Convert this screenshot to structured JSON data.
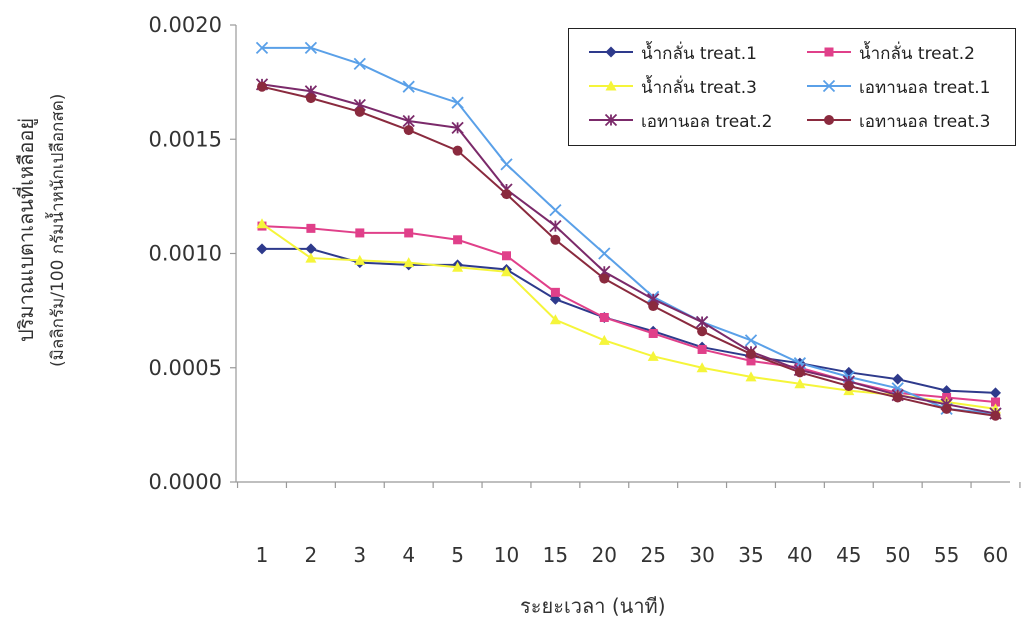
{
  "chart_data": {
    "type": "line",
    "ylabel_line1": "ปริมาณเบตาเลนที่เหลืออยู่",
    "ylabel_line2": "(มิลลิกรัม/100 กรัมน้ำหนักเปลือกสด)",
    "xlabel": "ระยะเวลา (นาที)",
    "categories": [
      "1",
      "2",
      "3",
      "4",
      "5",
      "10",
      "15",
      "20",
      "25",
      "30",
      "35",
      "40",
      "45",
      "50",
      "55",
      "60"
    ],
    "ylim": [
      0,
      0.002
    ],
    "yticks": [
      "0.0000",
      "0.0005",
      "0.0010",
      "0.0015",
      "0.0020"
    ],
    "legend_position": "top-right",
    "series": [
      {
        "name": "น้ำกลั่น treat.1",
        "color": "#2e3a8c",
        "marker": "diamond",
        "values": [
          0.00102,
          0.00102,
          0.00096,
          0.00095,
          0.00095,
          0.00093,
          0.0008,
          0.00072,
          0.00066,
          0.00059,
          0.00055,
          0.00052,
          0.00048,
          0.00045,
          0.0004,
          0.00039
        ]
      },
      {
        "name": "น้ำกลั่น treat.2",
        "color": "#e0408a",
        "marker": "square",
        "values": [
          0.00112,
          0.00111,
          0.00109,
          0.00109,
          0.00106,
          0.00099,
          0.00083,
          0.00072,
          0.00065,
          0.00058,
          0.00053,
          0.0005,
          0.00044,
          0.00039,
          0.00037,
          0.00035
        ]
      },
      {
        "name": "น้ำกลั่น treat.3",
        "color": "#f5f53a",
        "marker": "triangle",
        "values": [
          0.00113,
          0.00098,
          0.00097,
          0.00096,
          0.00094,
          0.00092,
          0.00071,
          0.00062,
          0.00055,
          0.0005,
          0.00046,
          0.00043,
          0.0004,
          0.00038,
          0.00035,
          0.00032
        ]
      },
      {
        "name": "เอทานอล treat.1",
        "color": "#5aa0e8",
        "marker": "x",
        "values": [
          0.0019,
          0.0019,
          0.00183,
          0.00173,
          0.00166,
          0.00139,
          0.00119,
          0.001,
          0.00081,
          0.0007,
          0.00062,
          0.00052,
          0.00046,
          0.00041,
          0.00032,
          0.0003
        ]
      },
      {
        "name": "เอทานอล treat.2",
        "color": "#7b2a6a",
        "marker": "star",
        "values": [
          0.00174,
          0.00171,
          0.00165,
          0.00158,
          0.00155,
          0.00128,
          0.00112,
          0.00092,
          0.0008,
          0.0007,
          0.00057,
          0.00049,
          0.00044,
          0.00038,
          0.00034,
          0.0003
        ]
      },
      {
        "name": "เอทานอล treat.3",
        "color": "#8a2a3e",
        "marker": "circle",
        "values": [
          0.00173,
          0.00168,
          0.00162,
          0.00154,
          0.00145,
          0.00126,
          0.00106,
          0.00089,
          0.00077,
          0.00066,
          0.00056,
          0.00048,
          0.00042,
          0.00037,
          0.00032,
          0.00029
        ]
      }
    ]
  }
}
